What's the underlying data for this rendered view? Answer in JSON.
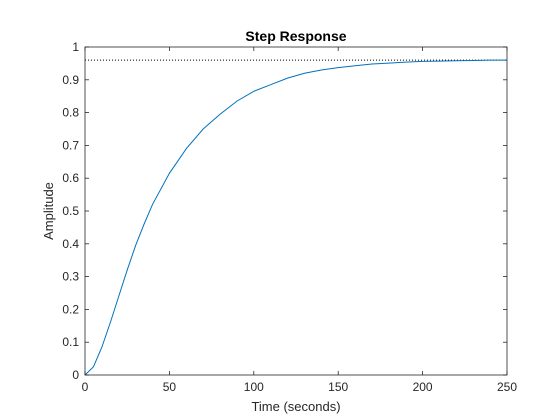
{
  "chart_data": {
    "type": "line",
    "title": "Step Response",
    "xlabel": "Time (seconds)",
    "ylabel": "Amplitude",
    "xlim": [
      0,
      250
    ],
    "ylim": [
      0,
      1
    ],
    "x_ticks": [
      0,
      50,
      100,
      150,
      200,
      250
    ],
    "y_ticks": [
      0,
      0.1,
      0.2,
      0.3,
      0.4,
      0.5,
      0.6,
      0.7,
      0.8,
      0.9,
      1
    ],
    "grid": false,
    "steady_state": 0.96,
    "series": [
      {
        "color": "#0072BD",
        "x": [
          0,
          5,
          10,
          15,
          20,
          25,
          30,
          35,
          40,
          50,
          60,
          70,
          80,
          90,
          100,
          110,
          120,
          130,
          140,
          150,
          160,
          170,
          180,
          190,
          200,
          210,
          220,
          230,
          240,
          250
        ],
        "y": [
          0,
          0.025,
          0.085,
          0.16,
          0.24,
          0.32,
          0.395,
          0.46,
          0.52,
          0.615,
          0.69,
          0.75,
          0.795,
          0.835,
          0.865,
          0.885,
          0.905,
          0.92,
          0.93,
          0.937,
          0.943,
          0.948,
          0.951,
          0.954,
          0.956,
          0.957,
          0.958,
          0.959,
          0.96,
          0.96
        ]
      }
    ],
    "reference_lines": [
      {
        "y": 0.96,
        "style": "dotted",
        "color": "#000000"
      }
    ]
  }
}
